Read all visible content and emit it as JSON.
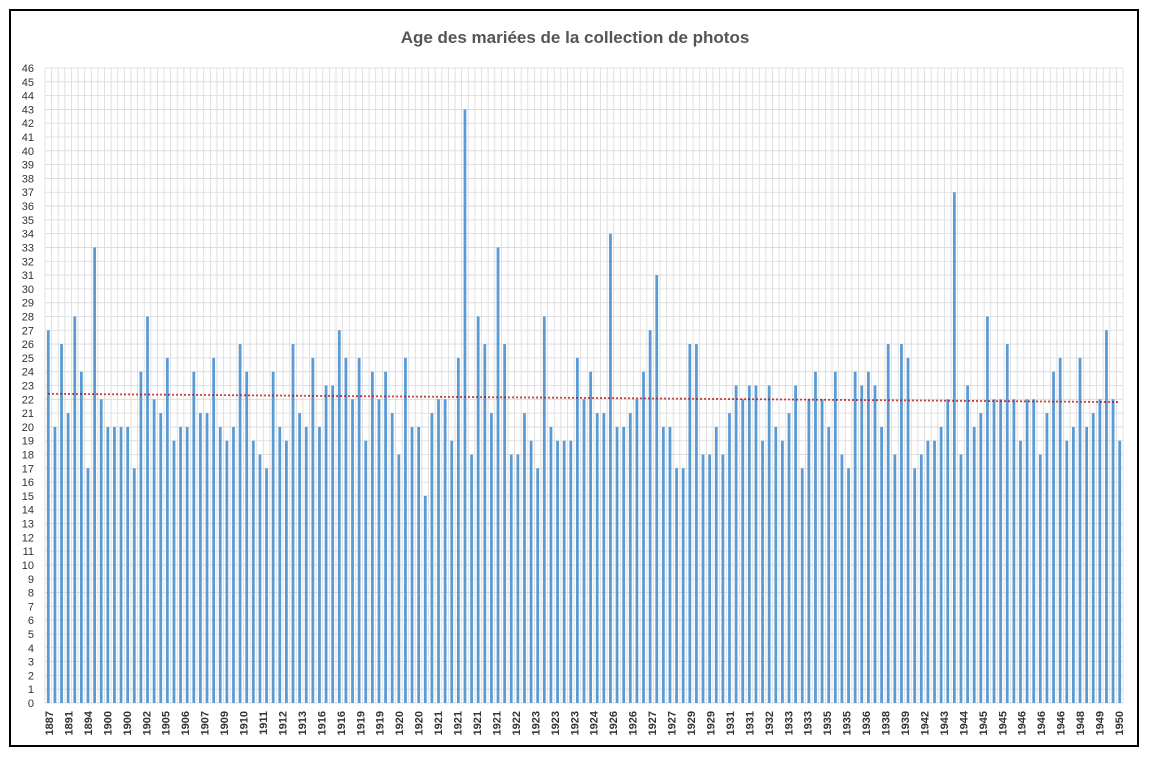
{
  "chart_data": {
    "type": "bar",
    "title": "Age des mariées de la collection de photos",
    "xlabel": "",
    "ylabel": "",
    "ylim": [
      0,
      46
    ],
    "grid": true,
    "trendline": {
      "style": "dotted",
      "start": 22.4,
      "end": 21.8
    },
    "colors": {
      "bar": "#5b9bd5",
      "trend": "#c00000",
      "grid": "#d9d9d9"
    },
    "x_tick_labels": [
      "1887",
      "1891",
      "1894",
      "1900",
      "1900",
      "1902",
      "1905",
      "1906",
      "1907",
      "1909",
      "1910",
      "1911",
      "1912",
      "1913",
      "1916",
      "1916",
      "1919",
      "1919",
      "1920",
      "1920",
      "1921",
      "1921",
      "1921",
      "1921",
      "1922",
      "1923",
      "1923",
      "1923",
      "1924",
      "1926",
      "1926",
      "1927",
      "1927",
      "1929",
      "1929",
      "1931",
      "1931",
      "1932",
      "1933",
      "1933",
      "1935",
      "1935",
      "1936",
      "1938",
      "1939",
      "1942",
      "1943",
      "1944",
      "1945",
      "1945",
      "1946",
      "1946",
      "1946",
      "1948",
      "1949",
      "1950"
    ],
    "values": [
      27,
      20,
      26,
      21,
      28,
      24,
      17,
      33,
      22,
      20,
      20,
      20,
      20,
      17,
      24,
      28,
      22,
      21,
      25,
      19,
      20,
      20,
      24,
      21,
      21,
      25,
      20,
      19,
      20,
      26,
      24,
      19,
      18,
      17,
      24,
      20,
      19,
      26,
      21,
      20,
      25,
      20,
      23,
      23,
      27,
      25,
      22,
      25,
      19,
      24,
      22,
      24,
      21,
      18,
      25,
      20,
      20,
      15,
      21,
      22,
      22,
      19,
      25,
      43,
      18,
      28,
      26,
      21,
      33,
      26,
      18,
      18,
      21,
      19,
      17,
      28,
      20,
      19,
      19,
      19,
      25,
      22,
      24,
      21,
      21,
      34,
      20,
      20,
      21,
      22,
      24,
      27,
      31,
      20,
      20,
      17,
      17,
      26,
      26,
      18,
      18,
      20,
      18,
      21,
      23,
      22,
      23,
      23,
      19,
      23,
      20,
      19,
      21,
      23,
      17,
      22,
      24,
      22,
      20,
      24,
      18,
      17,
      24,
      23,
      24,
      23,
      20,
      26,
      18,
      26,
      25,
      17,
      18,
      19,
      19,
      20,
      22,
      37,
      18,
      23,
      20,
      21,
      28,
      22,
      22,
      26,
      22,
      19,
      22,
      22,
      18,
      21,
      24,
      25,
      19,
      20,
      25,
      20,
      21,
      22,
      27,
      22,
      19
    ]
  }
}
